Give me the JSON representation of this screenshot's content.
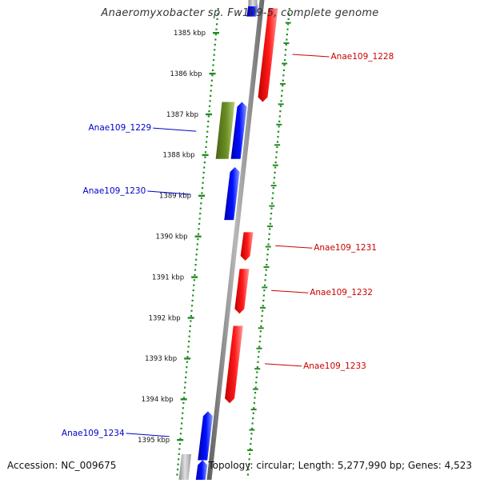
{
  "title": "Anaeromyxobacter sp. Fw109-5, complete genome",
  "accession_label": "Accession: NC_009675",
  "summary_label": "Topology: circular; Length: 5,277,990 bp; Genes: 4,523",
  "colors": {
    "forward_gene": "#ff0000",
    "reverse_gene": "#0000ff",
    "other_gene": "#6b8e23",
    "forward_label": "#cc0000",
    "reverse_label": "#0000cc",
    "ticks": "#228b22",
    "backbone": "#808080"
  },
  "scale": {
    "unit": "kbp",
    "ticks": [
      {
        "label": "1385 kbp",
        "kbp": 1385
      },
      {
        "label": "1386 kbp",
        "kbp": 1386
      },
      {
        "label": "1387 kbp",
        "kbp": 1387
      },
      {
        "label": "1388 kbp",
        "kbp": 1388
      },
      {
        "label": "1389 kbp",
        "kbp": 1389
      },
      {
        "label": "1390 kbp",
        "kbp": 1390
      },
      {
        "label": "1391 kbp",
        "kbp": 1391
      },
      {
        "label": "1392 kbp",
        "kbp": 1392
      },
      {
        "label": "1393 kbp",
        "kbp": 1393
      },
      {
        "label": "1394 kbp",
        "kbp": 1394
      },
      {
        "label": "1395 kbp",
        "kbp": 1395
      }
    ]
  },
  "genes": [
    {
      "strand": "reverse",
      "start_kbp": 1384.2,
      "end_kbp": 1384.6,
      "color": "#0000ff",
      "label": ""
    },
    {
      "strand": "forward",
      "start_kbp": 1384.4,
      "end_kbp": 1386.7,
      "color": "#ff0000",
      "label": "Anae109_1228"
    },
    {
      "strand": "other",
      "start_kbp": 1386.7,
      "end_kbp": 1388.1,
      "color": "#6b8e23",
      "label": "Anae109_1229"
    },
    {
      "strand": "reverse",
      "start_kbp": 1386.7,
      "end_kbp": 1388.1,
      "color": "#0000ff",
      "label": ""
    },
    {
      "strand": "reverse",
      "start_kbp": 1388.3,
      "end_kbp": 1389.6,
      "color": "#0000ff",
      "label": "Anae109_1230"
    },
    {
      "strand": "forward",
      "start_kbp": 1389.9,
      "end_kbp": 1390.6,
      "color": "#ff0000",
      "label": "Anae109_1231"
    },
    {
      "strand": "forward",
      "start_kbp": 1390.8,
      "end_kbp": 1391.9,
      "color": "#ff0000",
      "label": "Anae109_1232"
    },
    {
      "strand": "forward",
      "start_kbp": 1392.2,
      "end_kbp": 1394.1,
      "color": "#ff0000",
      "label": "Anae109_1233"
    },
    {
      "strand": "reverse",
      "start_kbp": 1394.3,
      "end_kbp": 1395.5,
      "color": "#0000ff",
      "label": "Anae109_1234"
    },
    {
      "strand": "reverse",
      "start_kbp": 1395.5,
      "end_kbp": 1396.2,
      "color": "#0000ff",
      "label": ""
    }
  ]
}
